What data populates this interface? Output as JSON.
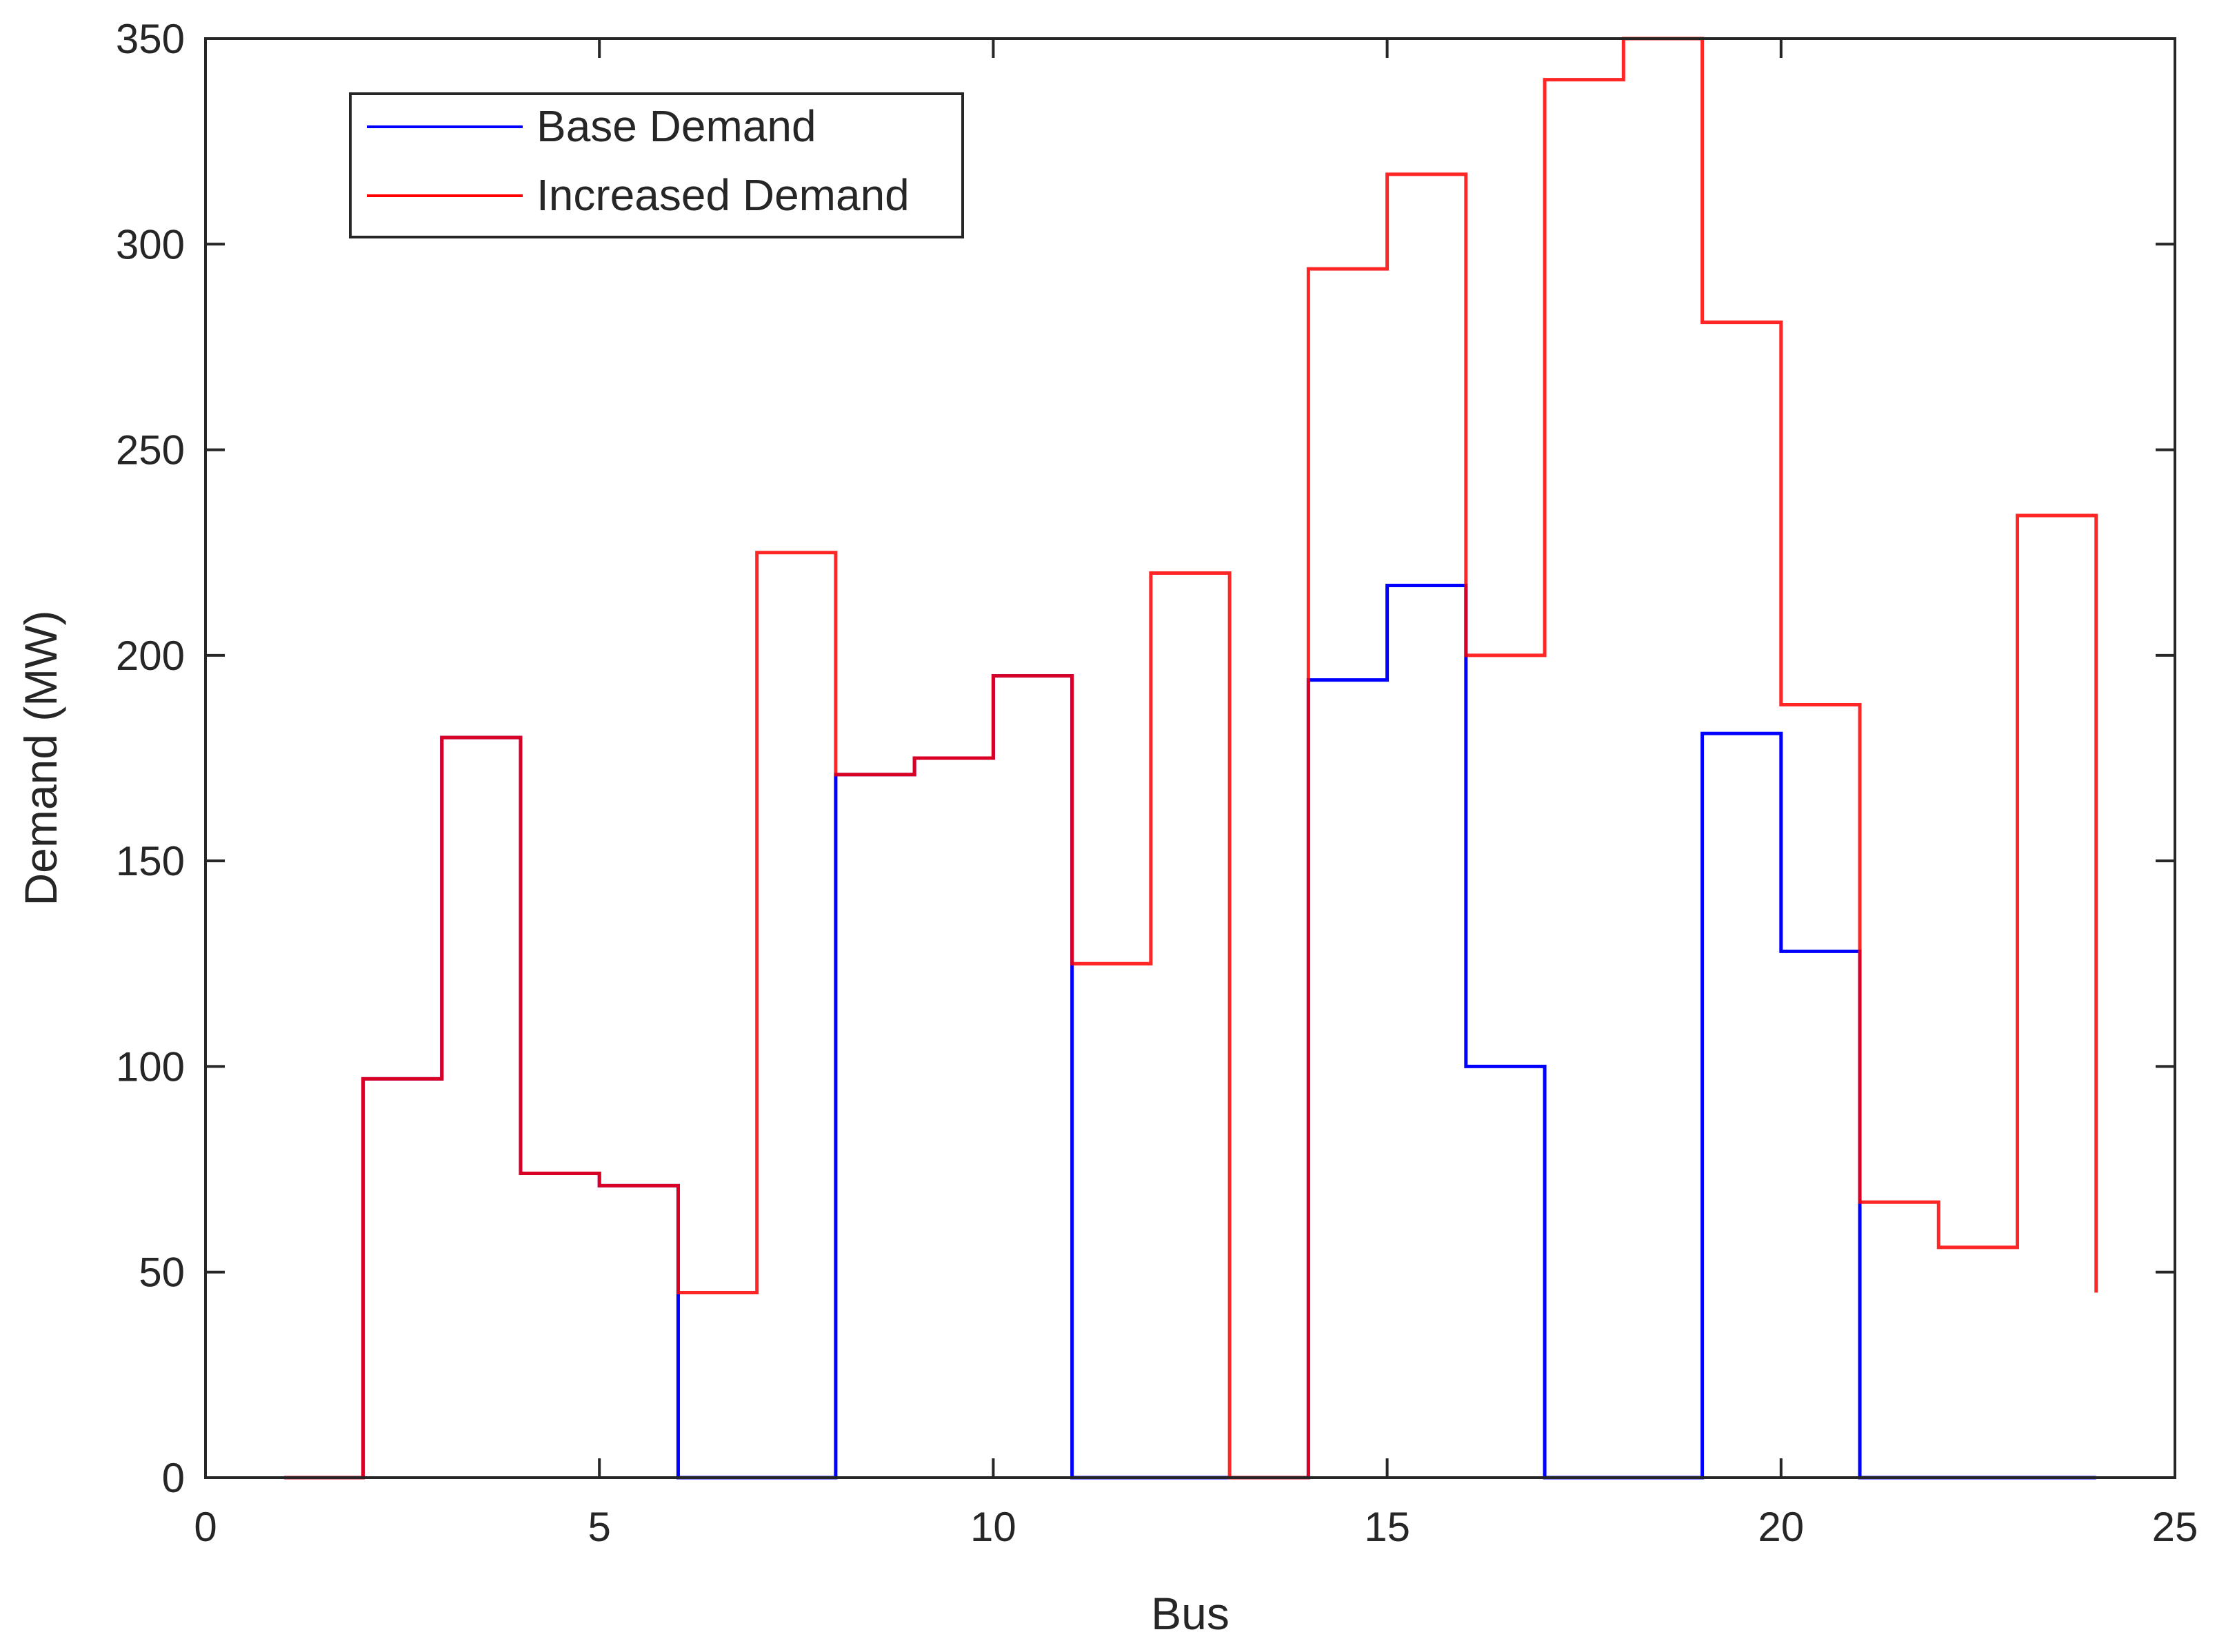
{
  "chart_data": {
    "type": "line",
    "style": "stairs",
    "title": "",
    "xlabel": "Bus",
    "ylabel": "Demand (MW)",
    "xlim": [
      0,
      25
    ],
    "ylim": [
      0,
      350
    ],
    "xticks": [
      0,
      5,
      10,
      15,
      20,
      25
    ],
    "yticks": [
      0,
      50,
      100,
      150,
      200,
      250,
      300,
      350
    ],
    "grid": false,
    "legend_position": "top-left",
    "x": [
      1,
      2,
      3,
      4,
      5,
      6,
      7,
      8,
      9,
      10,
      11,
      12,
      13,
      14,
      15,
      16,
      17,
      18,
      19,
      20,
      21,
      22,
      23,
      24
    ],
    "series": [
      {
        "name": "Base Demand",
        "color": "#0000ff",
        "values": [
          0,
          97,
          180,
          74,
          71,
          0,
          0,
          171,
          175,
          195,
          0,
          0,
          0,
          194,
          217,
          100,
          0,
          0,
          181,
          128,
          0,
          0,
          0,
          0
        ]
      },
      {
        "name": "Increased Demand",
        "color": "#ff0000",
        "values": [
          0,
          97,
          180,
          74,
          71,
          45,
          225,
          171,
          175,
          195,
          125,
          220,
          0,
          294,
          317,
          200,
          340,
          350,
          281,
          188,
          67,
          56,
          234,
          45
        ]
      }
    ]
  }
}
